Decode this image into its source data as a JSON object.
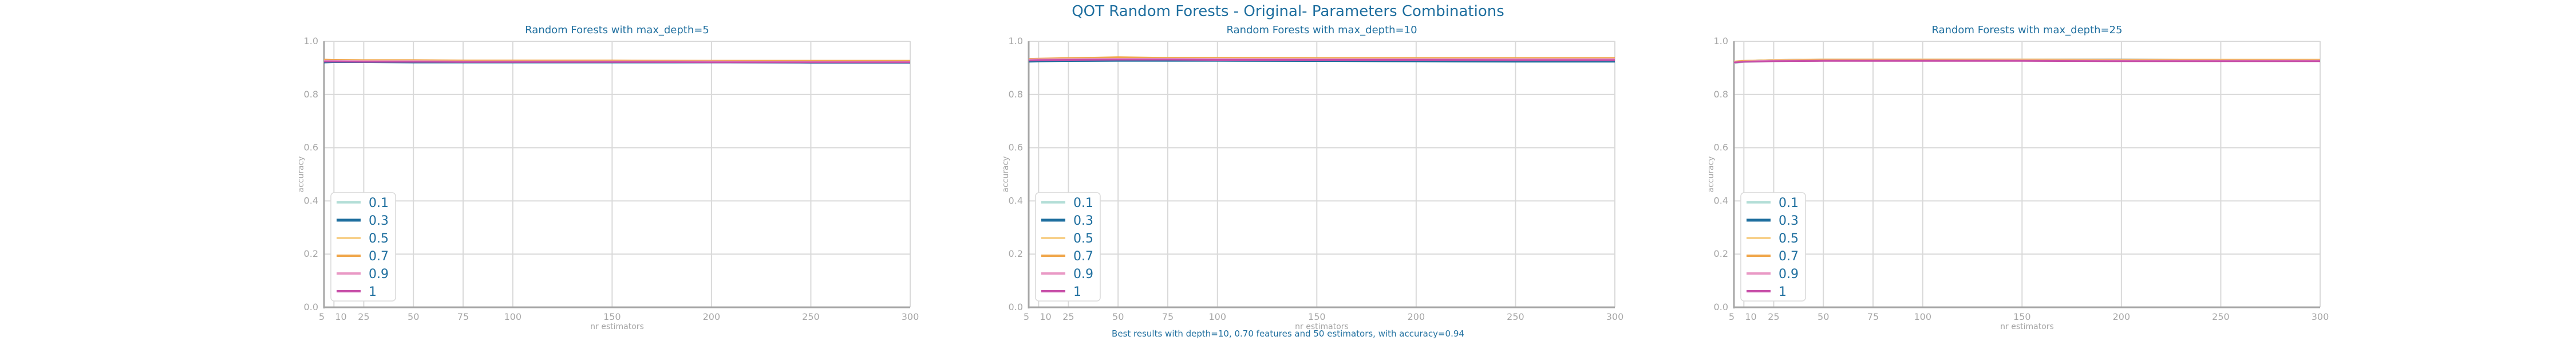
{
  "figure": {
    "title": "QOT Random Forests - Original- Parameters Combinations",
    "footnote": "Best results with depth=10, 0.70 features and 50 estimators, with accuracy=0.94"
  },
  "colors": {
    "title": "#1f6f9f",
    "axis": "#a6a6a6",
    "grid": "#d9d9d9",
    "series": [
      "#b3ded7",
      "#1f6f9f",
      "#f7d08a",
      "#f0a64a",
      "#e999c5",
      "#c74fa8"
    ]
  },
  "chart_data": [
    {
      "type": "line",
      "title": "Random Forests with max_depth=5",
      "xlabel": "nr estimators",
      "ylabel": "accuracy",
      "x": [
        5,
        10,
        25,
        50,
        75,
        100,
        150,
        200,
        250,
        300
      ],
      "xticks": [
        5,
        10,
        25,
        50,
        75,
        100,
        150,
        200,
        250,
        300
      ],
      "yticks": [
        0.0,
        0.2,
        0.4,
        0.6,
        0.8,
        1.0
      ],
      "xlim": [
        5,
        300
      ],
      "ylim": [
        0,
        1
      ],
      "grid": true,
      "legend": "lower-left",
      "series": [
        {
          "name": "0.1",
          "values": [
            0.922,
            0.923,
            0.923,
            0.922,
            0.922,
            0.922,
            0.921,
            0.921,
            0.921,
            0.921
          ]
        },
        {
          "name": "0.3",
          "values": [
            0.921,
            0.922,
            0.922,
            0.921,
            0.921,
            0.921,
            0.921,
            0.921,
            0.92,
            0.92
          ]
        },
        {
          "name": "0.5",
          "values": [
            0.93,
            0.929,
            0.928,
            0.928,
            0.927,
            0.927,
            0.927,
            0.926,
            0.926,
            0.926
          ]
        },
        {
          "name": "0.7",
          "values": [
            0.931,
            0.93,
            0.929,
            0.929,
            0.928,
            0.928,
            0.928,
            0.927,
            0.927,
            0.927
          ]
        },
        {
          "name": "0.9",
          "values": [
            0.927,
            0.926,
            0.925,
            0.925,
            0.924,
            0.924,
            0.924,
            0.924,
            0.923,
            0.923
          ]
        },
        {
          "name": "1",
          "values": [
            0.924,
            0.924,
            0.923,
            0.923,
            0.922,
            0.922,
            0.922,
            0.921,
            0.921,
            0.921
          ]
        }
      ]
    },
    {
      "type": "line",
      "title": "Random Forests with max_depth=10",
      "xlabel": "nr estimators",
      "ylabel": "accuracy",
      "x": [
        5,
        10,
        25,
        50,
        75,
        100,
        150,
        200,
        250,
        300
      ],
      "xticks": [
        5,
        10,
        25,
        50,
        75,
        100,
        150,
        200,
        250,
        300
      ],
      "yticks": [
        0.0,
        0.2,
        0.4,
        0.6,
        0.8,
        1.0
      ],
      "xlim": [
        5,
        300
      ],
      "ylim": [
        0,
        1
      ],
      "grid": true,
      "legend": "lower-left",
      "series": [
        {
          "name": "0.1",
          "values": [
            0.925,
            0.926,
            0.928,
            0.929,
            0.929,
            0.929,
            0.929,
            0.928,
            0.928,
            0.928
          ]
        },
        {
          "name": "0.3",
          "values": [
            0.924,
            0.925,
            0.926,
            0.927,
            0.927,
            0.927,
            0.926,
            0.925,
            0.924,
            0.924
          ]
        },
        {
          "name": "0.5",
          "values": [
            0.932,
            0.933,
            0.934,
            0.935,
            0.935,
            0.935,
            0.935,
            0.934,
            0.934,
            0.934
          ]
        },
        {
          "name": "0.7",
          "values": [
            0.934,
            0.935,
            0.937,
            0.94,
            0.938,
            0.938,
            0.937,
            0.937,
            0.937,
            0.937
          ]
        },
        {
          "name": "0.9",
          "values": [
            0.931,
            0.932,
            0.933,
            0.934,
            0.934,
            0.934,
            0.933,
            0.933,
            0.933,
            0.933
          ]
        },
        {
          "name": "1",
          "values": [
            0.928,
            0.929,
            0.93,
            0.931,
            0.931,
            0.93,
            0.93,
            0.93,
            0.929,
            0.929
          ]
        }
      ]
    },
    {
      "type": "line",
      "title": "Random Forests with max_depth=25",
      "xlabel": "nr estimators",
      "ylabel": "accuracy",
      "x": [
        5,
        10,
        25,
        50,
        75,
        100,
        150,
        200,
        250,
        300
      ],
      "xticks": [
        5,
        10,
        25,
        50,
        75,
        100,
        150,
        200,
        250,
        300
      ],
      "yticks": [
        0.0,
        0.2,
        0.4,
        0.6,
        0.8,
        1.0
      ],
      "xlim": [
        5,
        300
      ],
      "ylim": [
        0,
        1
      ],
      "grid": true,
      "legend": "lower-left",
      "series": [
        {
          "name": "0.1",
          "values": [
            0.918,
            0.922,
            0.925,
            0.927,
            0.928,
            0.928,
            0.928,
            0.928,
            0.928,
            0.928
          ]
        },
        {
          "name": "0.3",
          "values": [
            0.922,
            0.926,
            0.929,
            0.931,
            0.931,
            0.931,
            0.931,
            0.931,
            0.93,
            0.93
          ]
        },
        {
          "name": "0.5",
          "values": [
            0.924,
            0.927,
            0.93,
            0.932,
            0.932,
            0.932,
            0.932,
            0.931,
            0.931,
            0.931
          ]
        },
        {
          "name": "0.7",
          "values": [
            0.923,
            0.926,
            0.928,
            0.93,
            0.93,
            0.93,
            0.929,
            0.929,
            0.929,
            0.929
          ]
        },
        {
          "name": "0.9",
          "values": [
            0.921,
            0.924,
            0.927,
            0.928,
            0.928,
            0.928,
            0.928,
            0.927,
            0.927,
            0.927
          ]
        },
        {
          "name": "1",
          "values": [
            0.92,
            0.923,
            0.925,
            0.926,
            0.926,
            0.926,
            0.926,
            0.925,
            0.925,
            0.925
          ]
        }
      ]
    }
  ]
}
